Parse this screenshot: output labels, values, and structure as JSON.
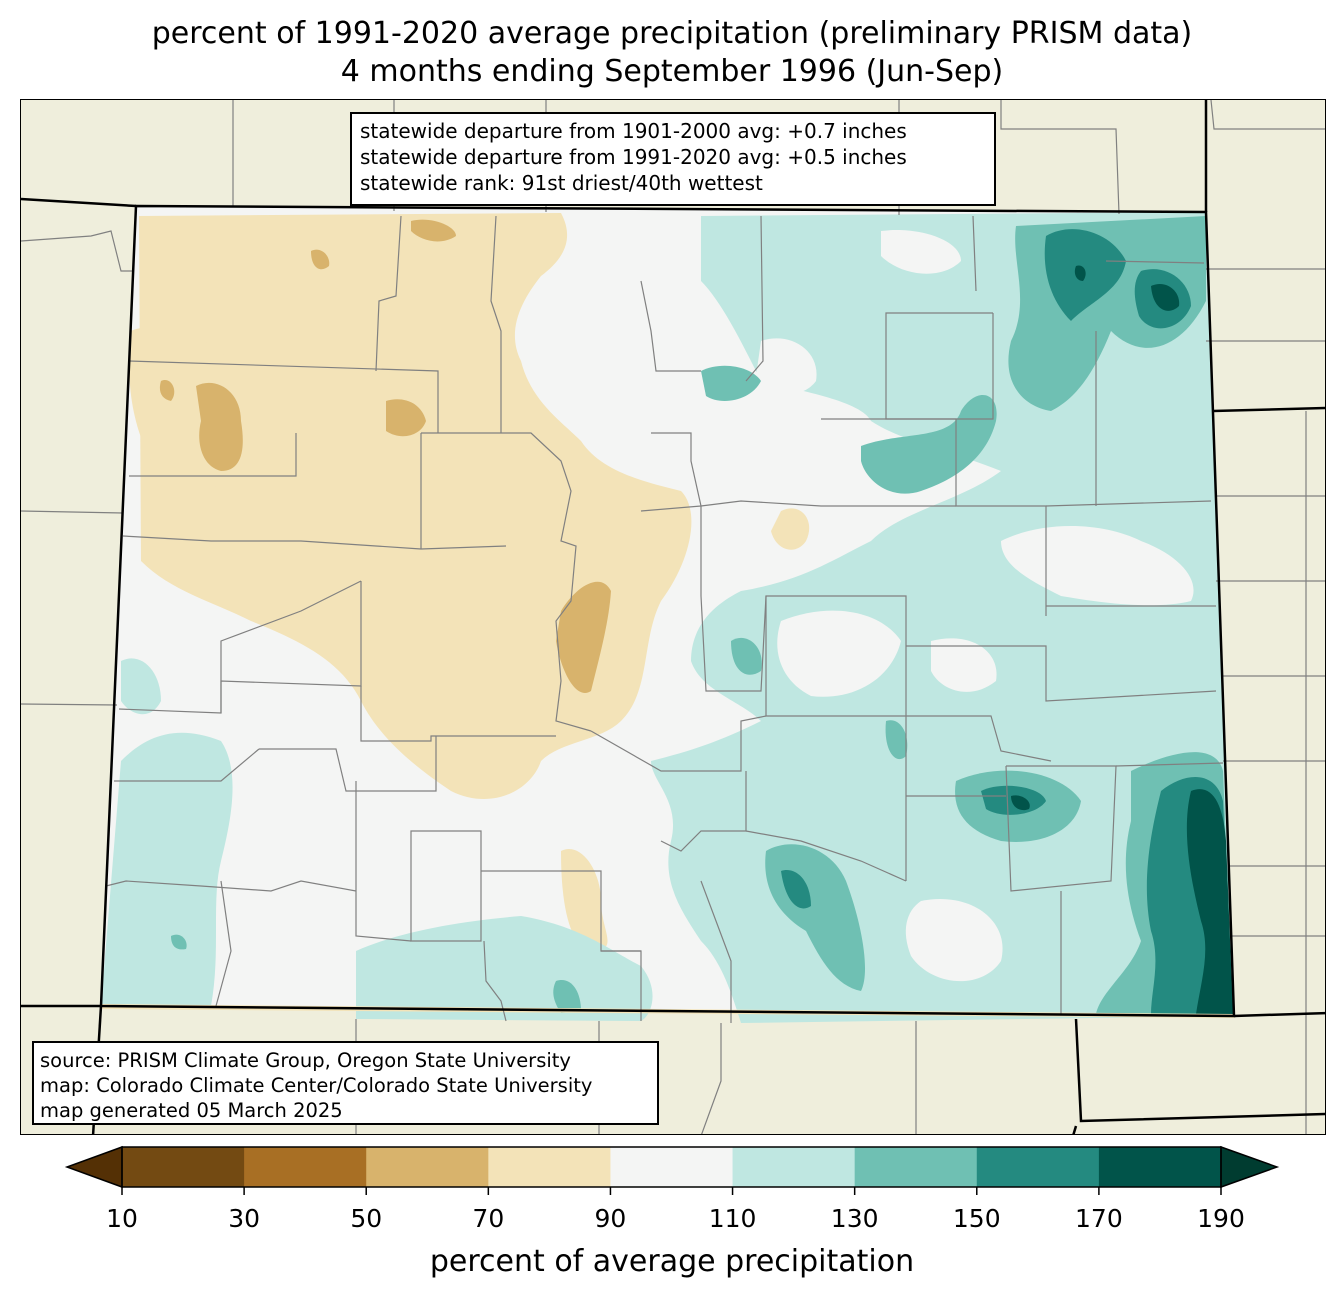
{
  "title": {
    "line1": "percent of 1991-2020 average precipitation (preliminary PRISM data)",
    "line2": "4 months ending September 1996 (Jun-Sep)"
  },
  "stats": {
    "line1": "statewide departure from 1901-2000 avg: +0.7 inches",
    "line2": "statewide departure from 1991-2020 avg: +0.5 inches",
    "line3": "statewide rank: 91st driest/40th wettest"
  },
  "source": {
    "line1": "source: PRISM Climate Group, Oregon State University",
    "line2": "map: Colorado Climate Center/Colorado State University",
    "line3": "map generated 05 March 2025"
  },
  "colorbar": {
    "label": "percent of average precipitation",
    "ticks": [
      "10",
      "30",
      "50",
      "70",
      "90",
      "110",
      "130",
      "150",
      "170",
      "190"
    ],
    "colors": [
      "#734a12",
      "#a86f24",
      "#d8b36c",
      "#f3e3b8",
      "#f4f5f4",
      "#bfe7e1",
      "#6fc0b3",
      "#248a80",
      "#01544a"
    ],
    "under_color": "#543005",
    "over_color": "#003c30"
  },
  "map_colors": {
    "background": "#efeedc",
    "state_fill": "#f4f5f4",
    "county_line": "#808080",
    "state_line": "#000000"
  }
}
